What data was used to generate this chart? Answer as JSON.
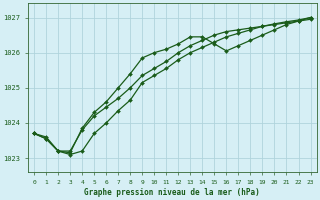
{
  "background_color": "#d6eff5",
  "grid_color": "#b0d4dc",
  "line_color": "#1a5c1a",
  "xlabel": "Graphe pression niveau de la mer (hPa)",
  "xlim": [
    -0.5,
    23.5
  ],
  "ylim": [
    1022.6,
    1027.4
  ],
  "yticks": [
    1023,
    1024,
    1025,
    1026,
    1027
  ],
  "xticks": [
    0,
    1,
    2,
    3,
    4,
    5,
    6,
    7,
    8,
    9,
    10,
    11,
    12,
    13,
    14,
    15,
    16,
    17,
    18,
    19,
    20,
    21,
    22,
    23
  ],
  "series1_x": [
    0,
    1,
    2,
    3,
    4,
    5,
    6,
    7,
    8,
    9,
    10,
    11,
    12,
    13,
    14,
    15,
    16,
    17,
    18,
    19,
    20,
    21,
    22,
    23
  ],
  "series1_y": [
    1023.7,
    1023.6,
    1023.2,
    1023.2,
    1023.8,
    1024.2,
    1024.45,
    1024.7,
    1025.0,
    1025.35,
    1025.55,
    1025.75,
    1026.0,
    1026.2,
    1026.35,
    1026.5,
    1026.6,
    1026.65,
    1026.7,
    1026.75,
    1026.8,
    1026.85,
    1026.9,
    1026.95
  ],
  "series2_x": [
    0,
    1,
    2,
    3,
    4,
    5,
    6,
    7,
    8,
    9,
    10,
    11,
    12,
    13,
    14,
    15,
    16,
    17,
    18,
    19,
    20,
    21,
    22,
    23
  ],
  "series2_y": [
    1023.7,
    1023.55,
    1023.2,
    1023.15,
    1023.85,
    1024.3,
    1024.6,
    1025.0,
    1025.4,
    1025.85,
    1026.0,
    1026.1,
    1026.25,
    1026.45,
    1026.45,
    1026.25,
    1026.05,
    1026.2,
    1026.35,
    1026.5,
    1026.65,
    1026.8,
    1026.9,
    1027.0
  ],
  "series3_x": [
    0,
    1,
    2,
    3,
    4,
    5,
    6,
    7,
    8,
    9,
    10,
    11,
    12,
    13,
    14,
    15,
    16,
    17,
    18,
    19,
    20,
    21,
    22,
    23
  ],
  "series3_y": [
    1023.7,
    1023.55,
    1023.2,
    1023.1,
    1023.2,
    1023.7,
    1024.0,
    1024.35,
    1024.65,
    1025.15,
    1025.35,
    1025.55,
    1025.8,
    1026.0,
    1026.15,
    1026.3,
    1026.45,
    1026.55,
    1026.65,
    1026.75,
    1026.82,
    1026.88,
    1026.93,
    1027.0
  ]
}
